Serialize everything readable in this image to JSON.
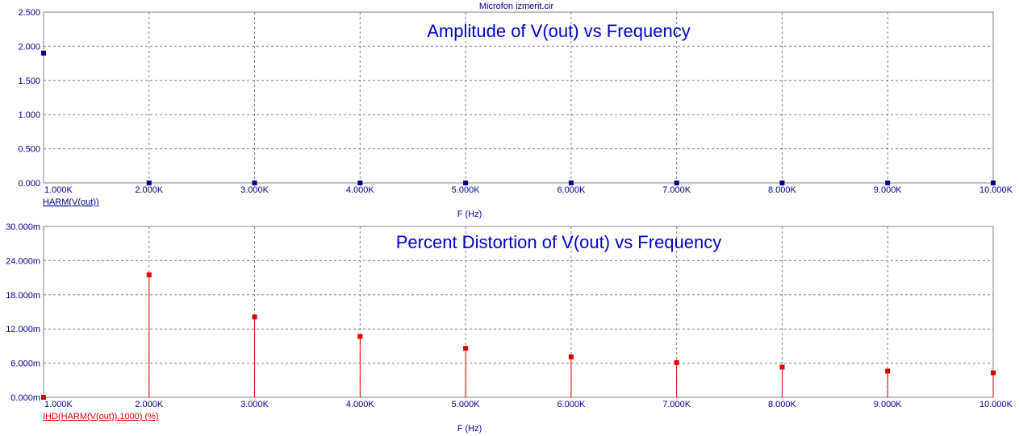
{
  "window_title": "Microfon izmerit.cir",
  "chart_data": [
    {
      "type": "bar",
      "title": "Amplitude of V(out) vs Frequency",
      "xlabel": "F (Hz)",
      "xlim": [
        1000,
        10000
      ],
      "ylim": [
        0,
        2.5
      ],
      "x_ticks": [
        1000,
        2000,
        3000,
        4000,
        5000,
        6000,
        7000,
        8000,
        9000,
        10000
      ],
      "x_tick_labels": [
        "1.000K",
        "2.000K",
        "3.000K",
        "4.000K",
        "5.000K",
        "6.000K",
        "7.000K",
        "8.000K",
        "9.000K",
        "10.000K"
      ],
      "y_ticks": [
        0,
        0.5,
        1.0,
        1.5,
        2.0,
        2.5
      ],
      "y_tick_labels": [
        "0.000",
        "0.500",
        "1.000",
        "1.500",
        "2.000",
        "2.500"
      ],
      "grid": true,
      "series": [
        {
          "name": "HARM(V(out))",
          "color": "#00008b",
          "x": [
            1000,
            2000,
            3000,
            4000,
            5000,
            6000,
            7000,
            8000,
            9000,
            10000
          ],
          "values": [
            1.9,
            0,
            0,
            0,
            0,
            0,
            0,
            0,
            0,
            0
          ]
        }
      ]
    },
    {
      "type": "bar",
      "title": "Percent Distortion of V(out) vs Frequency",
      "xlabel": "F (Hz)",
      "xlim": [
        1000,
        10000
      ],
      "ylim": [
        0,
        30
      ],
      "y_unit": "m",
      "x_ticks": [
        1000,
        2000,
        3000,
        4000,
        5000,
        6000,
        7000,
        8000,
        9000,
        10000
      ],
      "x_tick_labels": [
        "1.000K",
        "2.000K",
        "3.000K",
        "4.000K",
        "5.000K",
        "6.000K",
        "7.000K",
        "8.000K",
        "9.000K",
        "10.000K"
      ],
      "y_ticks": [
        0,
        6,
        12,
        18,
        24,
        30
      ],
      "y_tick_labels": [
        "0.000m",
        "6.000m",
        "12.000m",
        "18.000m",
        "24.000m",
        "30.000m"
      ],
      "grid": true,
      "series": [
        {
          "name": "IHD(HARM(V(out)),1000) (%)",
          "color": "#e00000",
          "x": [
            1000,
            2000,
            3000,
            4000,
            5000,
            6000,
            7000,
            8000,
            9000,
            10000
          ],
          "values": [
            0,
            21.5,
            14.1,
            10.7,
            8.6,
            7.1,
            6.1,
            5.3,
            4.6,
            4.3
          ]
        }
      ]
    }
  ]
}
